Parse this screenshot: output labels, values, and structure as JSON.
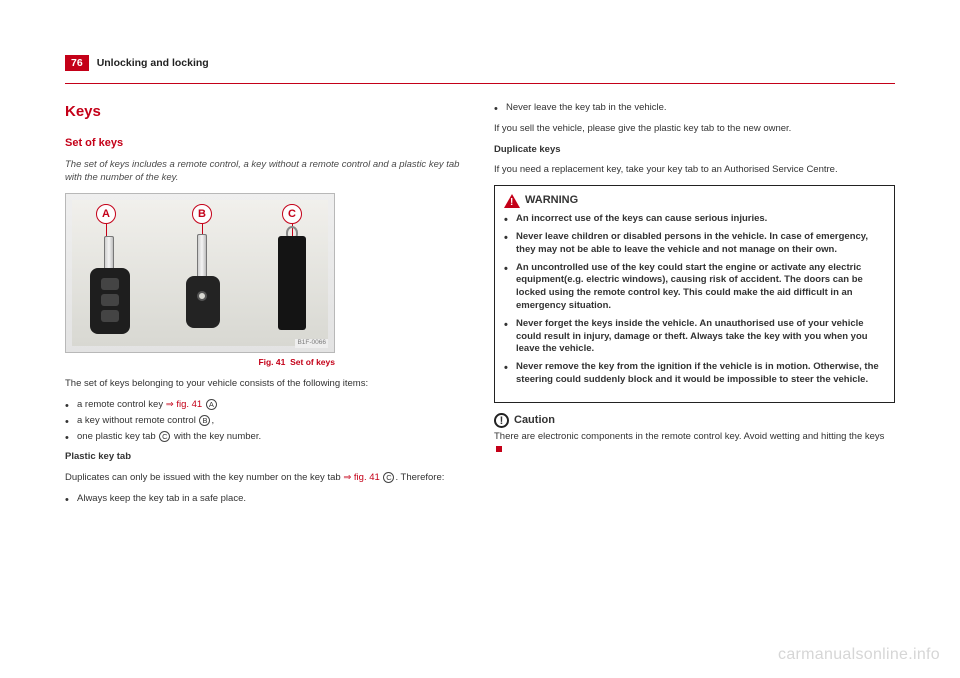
{
  "page_number": "76",
  "section_title": "Unlocking and locking",
  "h2": "Keys",
  "h3": "Set of keys",
  "intro": "The set of keys includes a remote control, a key without a remote control and a plastic key tab with the number of the key.",
  "figure": {
    "labels": {
      "A": "A",
      "B": "B",
      "C": "C"
    },
    "ref": "B1F-0066",
    "caption_prefix": "Fig. 41",
    "caption_text": "Set of keys"
  },
  "left": {
    "list_intro": "The set of keys belonging to your vehicle consists of the following items:",
    "items": {
      "a_pre": "a remote control key ",
      "a_link": "⇒ fig. 41",
      "b": "a key without remote control ",
      "b_post": ",",
      "c_pre": "one plastic key tab ",
      "c_post": " with the key number."
    },
    "subhead": "Plastic key tab",
    "dup_pre": "Duplicates can only be issued with the key number on the key tab ",
    "dup_link": "⇒ fig. 41",
    "dup_post": ". Therefore:",
    "always": "Always keep the key tab in a safe place."
  },
  "right": {
    "never_leave": "Never leave the key tab in the vehicle.",
    "sell": "If you sell the vehicle, please give the plastic key tab to the new owner.",
    "dup_head": "Duplicate keys",
    "dup_body": "If you need a replacement key, take your key tab to an Authorised Service Centre.",
    "warning_label": "WARNING",
    "warn": {
      "w1": "An incorrect use of the keys can cause serious injuries.",
      "w2": "Never leave children or disabled persons in the vehicle. In case of emergency, they may not be able to leave the vehicle and not manage on their own.",
      "w3": "An uncontrolled use of the key could start the engine or activate any electric equipment(e.g. electric windows), causing risk of accident. The doors can be locked using the remote control key. This could make the aid difficult in an emergency situation.",
      "w4": "Never forget the keys inside the vehicle. An unauthorised use of your vehicle could result in injury, damage or theft. Always take the key with you when you leave the vehicle.",
      "w5": "Never remove the key from the ignition if the vehicle is in motion. Otherwise, the steering could suddenly block and it would be impossible to steer the vehicle."
    },
    "caution_label": "Caution",
    "caution_body": "There are electronic components in the remote control key. Avoid wetting and hitting the keys"
  },
  "watermark": "carmanualsonline.info",
  "colors": {
    "accent": "#c40018",
    "text": "#333333",
    "bg": "#ffffff"
  }
}
